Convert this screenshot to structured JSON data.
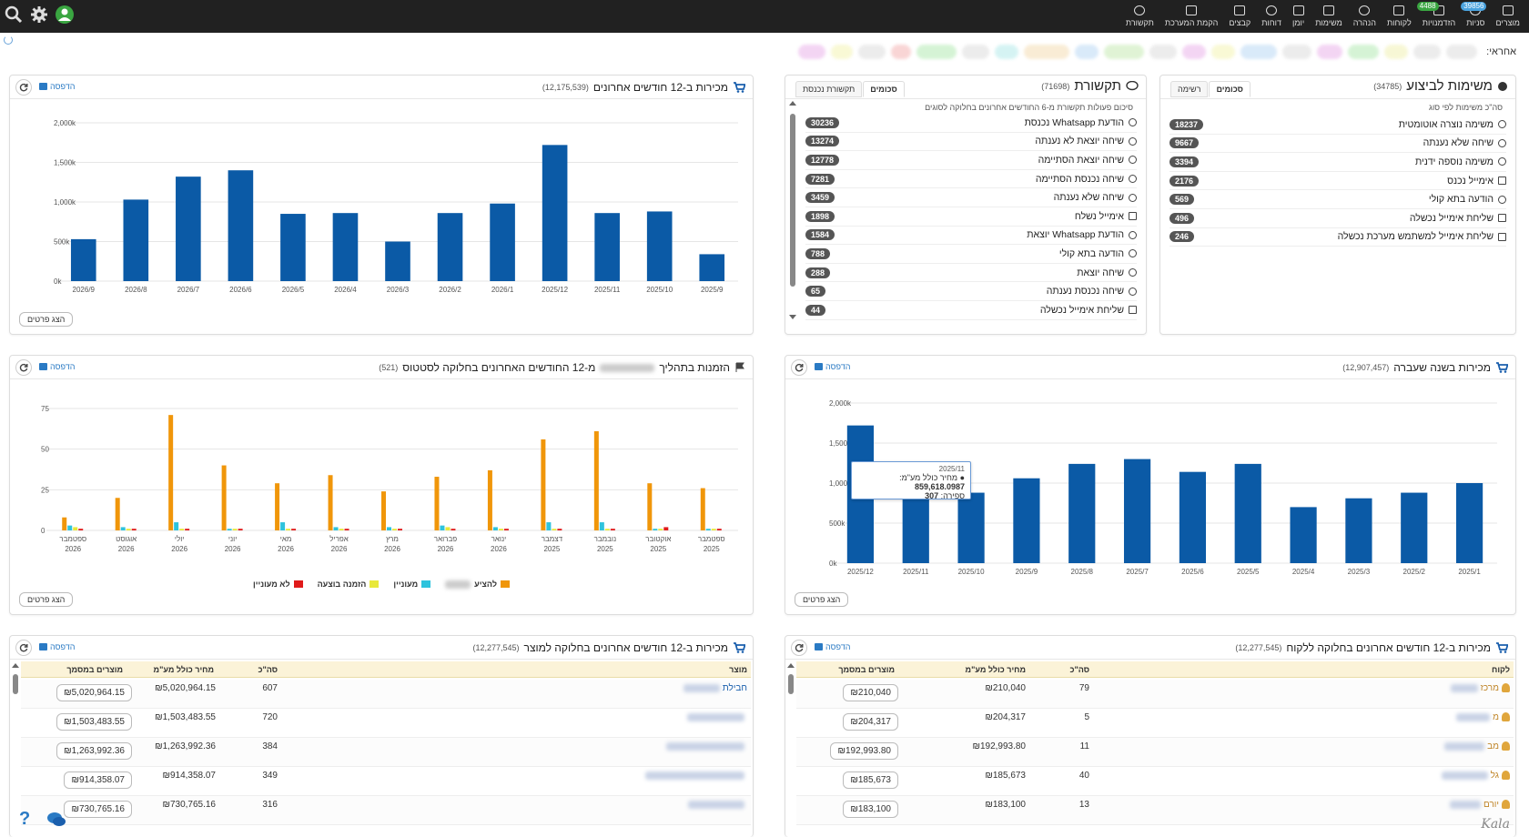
{
  "nav": {
    "items": [
      {
        "label": "מוצרים",
        "badge": ""
      },
      {
        "label": "סניות",
        "badge": "39856",
        "badge_color": "#4aa3df"
      },
      {
        "label": "הזדמנויות",
        "badge": "4488",
        "badge_color": "#3aa641"
      },
      {
        "label": "לקוחות",
        "badge": ""
      },
      {
        "label": "הנהרה",
        "badge": ""
      },
      {
        "label": "משימות",
        "badge": ""
      },
      {
        "label": "יומן",
        "badge": ""
      },
      {
        "label": "דוחות",
        "badge": ""
      },
      {
        "label": "קבצים",
        "badge": ""
      },
      {
        "label": "הקמת המערכת",
        "badge": ""
      },
      {
        "label": "תקשורת",
        "badge": ""
      }
    ]
  },
  "filters": {
    "label": "אחראי:"
  },
  "tasks_panel": {
    "title": "משימות לביצוע",
    "count": "(34785)",
    "subtitle": "סה\"כ משימות לפי סוג",
    "tab_summary": "סכומים",
    "tab_list": "רשימה",
    "rows": [
      {
        "label": "משימה נוצרה אוטומטית",
        "value": "18237",
        "icon": "gear-icon"
      },
      {
        "label": "שיחה שלא נענתה",
        "value": "9667",
        "icon": "phone-icon"
      },
      {
        "label": "משימה נוספה ידנית",
        "value": "3394",
        "icon": "gear-icon"
      },
      {
        "label": "אימייל נכנס",
        "value": "2176",
        "icon": "envelope-icon"
      },
      {
        "label": "הודעה בתא קולי",
        "value": "569",
        "icon": "phone-icon"
      },
      {
        "label": "שליחת אימייל נכשלה",
        "value": "496",
        "icon": "envelope-icon"
      },
      {
        "label": "שליחת אימייל למשתמש מערכת נכשלה",
        "value": "246",
        "icon": "envelope-icon"
      }
    ]
  },
  "comm_panel": {
    "title": "תקשורת",
    "count": "(71698)",
    "subtitle": "סיכום פעולות תקשורת מ-6 החודשים אחרונים בחלוקה לסוגים",
    "tab_summary": "סכומים",
    "tab_incoming": "תקשורת נכנסת",
    "rows": [
      {
        "label": "הודעת Whatsapp נכנסת",
        "value": "30236",
        "icon": "whatsapp-icon"
      },
      {
        "label": "שיחה יוצאת לא נענתה",
        "value": "13274",
        "icon": "phone-icon"
      },
      {
        "label": "שיחה יוצאת הסתיימה",
        "value": "12778",
        "icon": "phone-icon"
      },
      {
        "label": "שיחה נכנסת הסתיימה",
        "value": "7281",
        "icon": "phone-icon"
      },
      {
        "label": "שיחה שלא נענתה",
        "value": "3459",
        "icon": "phone-icon"
      },
      {
        "label": "אימייל נשלח",
        "value": "1898",
        "icon": "envelope-icon"
      },
      {
        "label": "הודעת Whatsapp יוצאת",
        "value": "1584",
        "icon": "whatsapp-icon"
      },
      {
        "label": "הודעה בתא קולי",
        "value": "788",
        "icon": "phone-icon"
      },
      {
        "label": "שיחה יוצאת",
        "value": "288",
        "icon": "phone-icon"
      },
      {
        "label": "שיחה נכנסת נענתה",
        "value": "65",
        "icon": "phone-icon"
      },
      {
        "label": "שליחת אימייל נכשלה",
        "value": "44",
        "icon": "envelope-icon"
      }
    ]
  },
  "sales12": {
    "title": "מכירות ב-12 חודשים אחרונים",
    "count": "(12,175,539)",
    "print": "הדפסה",
    "details": "הצג פרטים"
  },
  "sales_last_year": {
    "title": "מכירות בשנה שעברה",
    "count": "(12,907,457)",
    "print": "הדפסה",
    "details": "הצג פרטים",
    "tooltip": {
      "date": "2025/11",
      "price_label": "מחיר כולל מע\"מ:",
      "price": "859,618.0987",
      "count_label": "ספירה:",
      "count": "307"
    }
  },
  "orders_panel": {
    "title_a": "הזמנות בתהליך",
    "title_b": "מ-12 החודשים האחרונים בחלוקה לסטטוס",
    "count": "(521)",
    "print": "הדפסה",
    "details": "הצג פרטים",
    "legend": [
      {
        "label": "להציע",
        "color": "#f0960a"
      },
      {
        "label": "מעוניין",
        "color": "#2ec3dd"
      },
      {
        "label": "הזמנה בוצעה",
        "color": "#e8e83a"
      },
      {
        "label": "לא מעוניין",
        "color": "#e01a1a"
      }
    ]
  },
  "by_customer": {
    "title": "מכירות ב-12 חודשים אחרונים בחלוקה ללקוח",
    "count": "(12,277,545)",
    "print": "הדפסה",
    "headers": {
      "name": "לקוח",
      "qty": "סה\"כ",
      "price": "מחיר כולל מע\"מ",
      "doc": "מוצרים במסמך"
    },
    "rows": [
      {
        "name": "מרכז",
        "qty": "79",
        "price": "₪210,040",
        "doc": "₪210,040"
      },
      {
        "name": "מ",
        "qty": "5",
        "price": "₪204,317",
        "doc": "₪204,317"
      },
      {
        "name": "מב",
        "qty": "11",
        "price": "₪192,993.80",
        "doc": "₪192,993.80"
      },
      {
        "name": "גל",
        "qty": "40",
        "price": "₪185,673",
        "doc": "₪185,673"
      },
      {
        "name": "יורם",
        "qty": "13",
        "price": "₪183,100",
        "doc": "₪183,100"
      }
    ]
  },
  "by_product": {
    "title": "מכירות ב-12 חודשים אחרונים בחלוקה למוצר",
    "count": "(12,277,545)",
    "print": "הדפסה",
    "headers": {
      "name": "מוצר",
      "qty": "סה\"כ",
      "price": "מחיר כולל מע\"מ",
      "doc": "מוצרים במסמך"
    },
    "rows": [
      {
        "name": "חבילת",
        "qty": "607",
        "price": "₪5,020,964.15",
        "doc": "₪5,020,964.15"
      },
      {
        "name": "",
        "qty": "720",
        "price": "₪1,503,483.55",
        "doc": "₪1,503,483.55"
      },
      {
        "name": "",
        "qty": "384",
        "price": "₪1,263,992.36",
        "doc": "₪1,263,992.36"
      },
      {
        "name": "",
        "qty": "349",
        "price": "₪914,358.07",
        "doc": "₪914,358.07"
      },
      {
        "name": "",
        "qty": "316",
        "price": "₪730,765.16",
        "doc": "₪730,765.16"
      }
    ]
  },
  "brand": "Kala",
  "chart_data": [
    {
      "type": "bar",
      "categories": [
        "2026/9",
        "2026/8",
        "2026/7",
        "2026/6",
        "2026/5",
        "2026/4",
        "2026/3",
        "2026/2",
        "2026/1",
        "2025/12",
        "2025/11",
        "2025/10",
        "2025/9"
      ],
      "values": [
        530,
        1030,
        1320,
        1400,
        850,
        860,
        500,
        860,
        980,
        1720,
        860,
        880,
        340
      ],
      "ylim": [
        0,
        2000
      ],
      "ytick_labels": [
        "0k",
        "500k",
        "1,000k",
        "1,500k",
        "2,000k"
      ],
      "color": "#0b5aa6"
    },
    {
      "type": "bar",
      "categories": [
        "2025/12",
        "2025/11",
        "2025/10",
        "2025/9",
        "2025/8",
        "2025/7",
        "2025/6",
        "2025/5",
        "2025/4",
        "2025/3",
        "2025/2",
        "2025/1"
      ],
      "values": [
        1720,
        860,
        880,
        1060,
        1240,
        1300,
        1140,
        1240,
        700,
        810,
        880,
        1000
      ],
      "ylim": [
        0,
        2000
      ],
      "ytick_labels": [
        "0k",
        "500k",
        "1,000k",
        "1,500k",
        "2,000k"
      ],
      "color": "#0b5aa6"
    },
    {
      "type": "bar",
      "categories": [
        "ספטמבר 2026",
        "אוגוסט 2026",
        "יולי 2026",
        "יוני 2026",
        "מאי 2026",
        "אפריל 2026",
        "מרץ 2026",
        "פברואר 2026",
        "ינואר 2026",
        "דצמבר 2025",
        "נובמבר 2025",
        "אוקטובר 2025",
        "ספטמבר 2025"
      ],
      "series": [
        {
          "name": "להציע",
          "color": "#f0960a",
          "values": [
            8,
            20,
            71,
            40,
            29,
            34,
            24,
            33,
            37,
            56,
            61,
            29,
            26
          ]
        },
        {
          "name": "מעוניין",
          "color": "#2ec3dd",
          "values": [
            3,
            2,
            5,
            1,
            5,
            2,
            2,
            3,
            2,
            5,
            5,
            1,
            1
          ]
        },
        {
          "name": "הזמנה בוצעה",
          "color": "#e8e83a",
          "values": [
            2,
            1,
            1,
            1,
            1,
            1,
            1,
            2,
            1,
            1,
            1,
            1,
            1
          ]
        },
        {
          "name": "לא מעוניין",
          "color": "#e01a1a",
          "values": [
            1,
            1,
            1,
            1,
            1,
            1,
            1,
            1,
            1,
            1,
            1,
            2,
            1
          ]
        }
      ],
      "ylim": [
        0,
        75
      ],
      "yticks": [
        0,
        25,
        50,
        75
      ]
    }
  ]
}
